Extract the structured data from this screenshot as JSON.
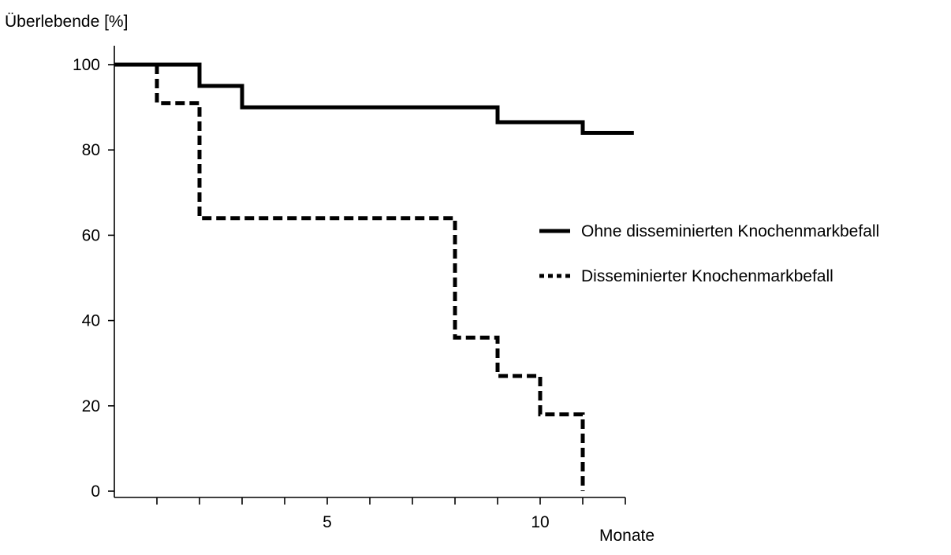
{
  "chart_data": {
    "type": "line",
    "step": true,
    "ylabel": "Überlebende [%]",
    "xlabel": "Monate",
    "xlim": [
      0,
      12
    ],
    "ylim": [
      0,
      100
    ],
    "x_ticks": [
      1,
      2,
      3,
      4,
      5,
      6,
      7,
      8,
      9,
      10,
      11,
      12
    ],
    "x_tick_labels": [
      {
        "value": 5,
        "label": "5"
      },
      {
        "value": 10,
        "label": "10"
      }
    ],
    "y_ticks": [
      0,
      20,
      40,
      60,
      80,
      100
    ],
    "y_tick_labels": [
      "0",
      "20",
      "40",
      "60",
      "80",
      "100"
    ],
    "grid": false,
    "legend_position": "right",
    "series": [
      {
        "name": "Ohne disseminierten Knochenmarkbefall",
        "style": "solid",
        "color": "#000000",
        "x": [
          0,
          2,
          3,
          9,
          11,
          12.2
        ],
        "y": [
          100,
          95,
          90,
          86.5,
          84,
          84
        ]
      },
      {
        "name": "Disseminierter Knochenmarkbefall",
        "style": "dashed",
        "color": "#000000",
        "x": [
          0,
          1,
          2,
          8,
          9,
          10,
          11
        ],
        "y": [
          100,
          91,
          64,
          36,
          27,
          18,
          0
        ]
      }
    ]
  }
}
